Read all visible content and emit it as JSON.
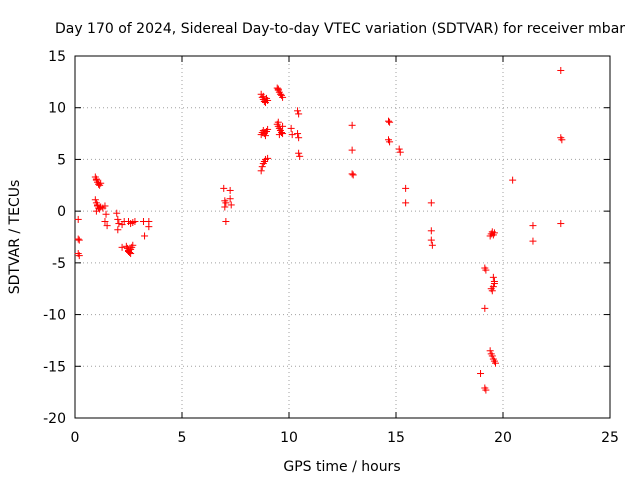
{
  "chart_data": {
    "type": "scatter",
    "title": "Day 170 of 2024, Sidereal Day-to-day VTEC variation (SDTVAR) for receiver mbar",
    "xlabel": "GPS time / hours",
    "ylabel": "SDTVAR / TECUs",
    "xlim": [
      0,
      25
    ],
    "ylim": [
      -20,
      15
    ],
    "xticks": [
      0,
      5,
      10,
      15,
      20,
      25
    ],
    "yticks": [
      -20,
      -15,
      -10,
      -5,
      0,
      5,
      10,
      15
    ],
    "xtick_labels": [
      "0",
      "5",
      "10",
      "15",
      "20",
      "25"
    ],
    "ytick_labels": [
      "-20",
      "-15",
      "-10",
      "-5",
      "0",
      "5",
      "10",
      "15"
    ],
    "grid": true,
    "marker": "+",
    "color": "#ff0000",
    "series": [
      {
        "name": "SDTVAR",
        "points": [
          [
            0.15,
            -0.8
          ],
          [
            0.15,
            -2.7
          ],
          [
            0.2,
            -2.8
          ],
          [
            0.15,
            -4.1
          ],
          [
            0.2,
            -4.3
          ],
          [
            0.95,
            3.3
          ],
          [
            1.0,
            3.0
          ],
          [
            1.05,
            2.8
          ],
          [
            1.1,
            2.6
          ],
          [
            1.15,
            2.5
          ],
          [
            1.2,
            2.7
          ],
          [
            1.0,
            3.1
          ],
          [
            0.95,
            1.1
          ],
          [
            1.0,
            0.8
          ],
          [
            1.05,
            0.5
          ],
          [
            1.1,
            0.3
          ],
          [
            1.15,
            0.2
          ],
          [
            1.0,
            0.0
          ],
          [
            1.05,
            0.6
          ],
          [
            1.2,
            0.4
          ],
          [
            1.3,
            0.3
          ],
          [
            1.4,
            0.5
          ],
          [
            1.45,
            -0.3
          ],
          [
            1.4,
            -1.0
          ],
          [
            1.5,
            -1.4
          ],
          [
            1.95,
            -0.2
          ],
          [
            2.0,
            -0.8
          ],
          [
            2.05,
            -1.2
          ],
          [
            2.0,
            -1.8
          ],
          [
            2.2,
            -1.3
          ],
          [
            2.3,
            -1.0
          ],
          [
            2.2,
            -3.5
          ],
          [
            2.4,
            -3.4
          ],
          [
            2.45,
            -3.6
          ],
          [
            2.5,
            -3.8
          ],
          [
            2.55,
            -4.0
          ],
          [
            2.6,
            -3.7
          ],
          [
            2.65,
            -3.5
          ],
          [
            2.7,
            -3.3
          ],
          [
            2.5,
            -3.9
          ],
          [
            2.6,
            -4.1
          ],
          [
            2.5,
            -1.0
          ],
          [
            2.6,
            -1.2
          ],
          [
            2.7,
            -1.1
          ],
          [
            2.8,
            -1.0
          ],
          [
            3.2,
            -1.0
          ],
          [
            3.25,
            -2.4
          ],
          [
            3.45,
            -1.5
          ],
          [
            3.45,
            -1.0
          ],
          [
            6.95,
            2.2
          ],
          [
            7.0,
            1.0
          ],
          [
            7.05,
            0.8
          ],
          [
            7.0,
            0.4
          ],
          [
            7.05,
            -1.0
          ],
          [
            7.25,
            2.0
          ],
          [
            7.25,
            1.2
          ],
          [
            7.3,
            0.6
          ],
          [
            8.7,
            11.3
          ],
          [
            8.75,
            11.0
          ],
          [
            8.8,
            10.8
          ],
          [
            8.85,
            10.6
          ],
          [
            8.9,
            10.5
          ],
          [
            8.95,
            10.9
          ],
          [
            9.0,
            10.7
          ],
          [
            8.8,
            11.1
          ],
          [
            8.7,
            7.4
          ],
          [
            8.75,
            7.6
          ],
          [
            8.8,
            7.8
          ],
          [
            8.85,
            7.5
          ],
          [
            8.9,
            7.3
          ],
          [
            8.95,
            7.7
          ],
          [
            9.0,
            7.9
          ],
          [
            8.7,
            3.9
          ],
          [
            8.75,
            4.3
          ],
          [
            8.8,
            4.6
          ],
          [
            8.85,
            4.8
          ],
          [
            8.9,
            5.0
          ],
          [
            9.0,
            5.1
          ],
          [
            9.45,
            11.9
          ],
          [
            9.5,
            11.7
          ],
          [
            9.55,
            11.5
          ],
          [
            9.6,
            11.3
          ],
          [
            9.65,
            11.2
          ],
          [
            9.7,
            11.0
          ],
          [
            9.5,
            11.8
          ],
          [
            9.45,
            8.4
          ],
          [
            9.5,
            8.2
          ],
          [
            9.55,
            8.0
          ],
          [
            9.6,
            7.8
          ],
          [
            9.65,
            7.6
          ],
          [
            9.7,
            7.5
          ],
          [
            9.5,
            8.6
          ],
          [
            9.55,
            7.4
          ],
          [
            9.7,
            8.2
          ],
          [
            10.1,
            8.0
          ],
          [
            10.15,
            7.4
          ],
          [
            10.4,
            9.7
          ],
          [
            10.45,
            9.4
          ],
          [
            10.4,
            7.5
          ],
          [
            10.45,
            7.1
          ],
          [
            10.45,
            5.6
          ],
          [
            10.5,
            5.3
          ],
          [
            12.95,
            8.3
          ],
          [
            12.95,
            5.9
          ],
          [
            12.95,
            3.6
          ],
          [
            13.0,
            3.5
          ],
          [
            14.65,
            8.7
          ],
          [
            14.7,
            8.6
          ],
          [
            14.65,
            6.9
          ],
          [
            14.7,
            6.7
          ],
          [
            15.15,
            6.0
          ],
          [
            15.2,
            5.7
          ],
          [
            15.45,
            2.2
          ],
          [
            15.45,
            0.8
          ],
          [
            16.65,
            0.8
          ],
          [
            16.65,
            -1.9
          ],
          [
            16.65,
            -2.8
          ],
          [
            16.7,
            -3.3
          ],
          [
            18.95,
            -15.7
          ],
          [
            19.15,
            -5.5
          ],
          [
            19.2,
            -5.7
          ],
          [
            19.15,
            -9.4
          ],
          [
            19.15,
            -17.1
          ],
          [
            19.2,
            -17.3
          ],
          [
            19.4,
            -2.4
          ],
          [
            19.45,
            -2.2
          ],
          [
            19.5,
            -2.0
          ],
          [
            19.55,
            -2.3
          ],
          [
            19.6,
            -2.1
          ],
          [
            19.45,
            -7.5
          ],
          [
            19.5,
            -7.7
          ],
          [
            19.55,
            -7.3
          ],
          [
            19.6,
            -6.8
          ],
          [
            19.55,
            -6.4
          ],
          [
            19.6,
            -7.0
          ],
          [
            19.4,
            -13.5
          ],
          [
            19.45,
            -13.8
          ],
          [
            19.5,
            -14.0
          ],
          [
            19.55,
            -14.3
          ],
          [
            19.6,
            -14.5
          ],
          [
            19.65,
            -14.7
          ],
          [
            20.45,
            3.0
          ],
          [
            21.4,
            -1.4
          ],
          [
            21.4,
            -2.9
          ],
          [
            22.7,
            13.6
          ],
          [
            22.7,
            7.1
          ],
          [
            22.75,
            6.9
          ],
          [
            22.7,
            -1.2
          ]
        ]
      }
    ]
  }
}
